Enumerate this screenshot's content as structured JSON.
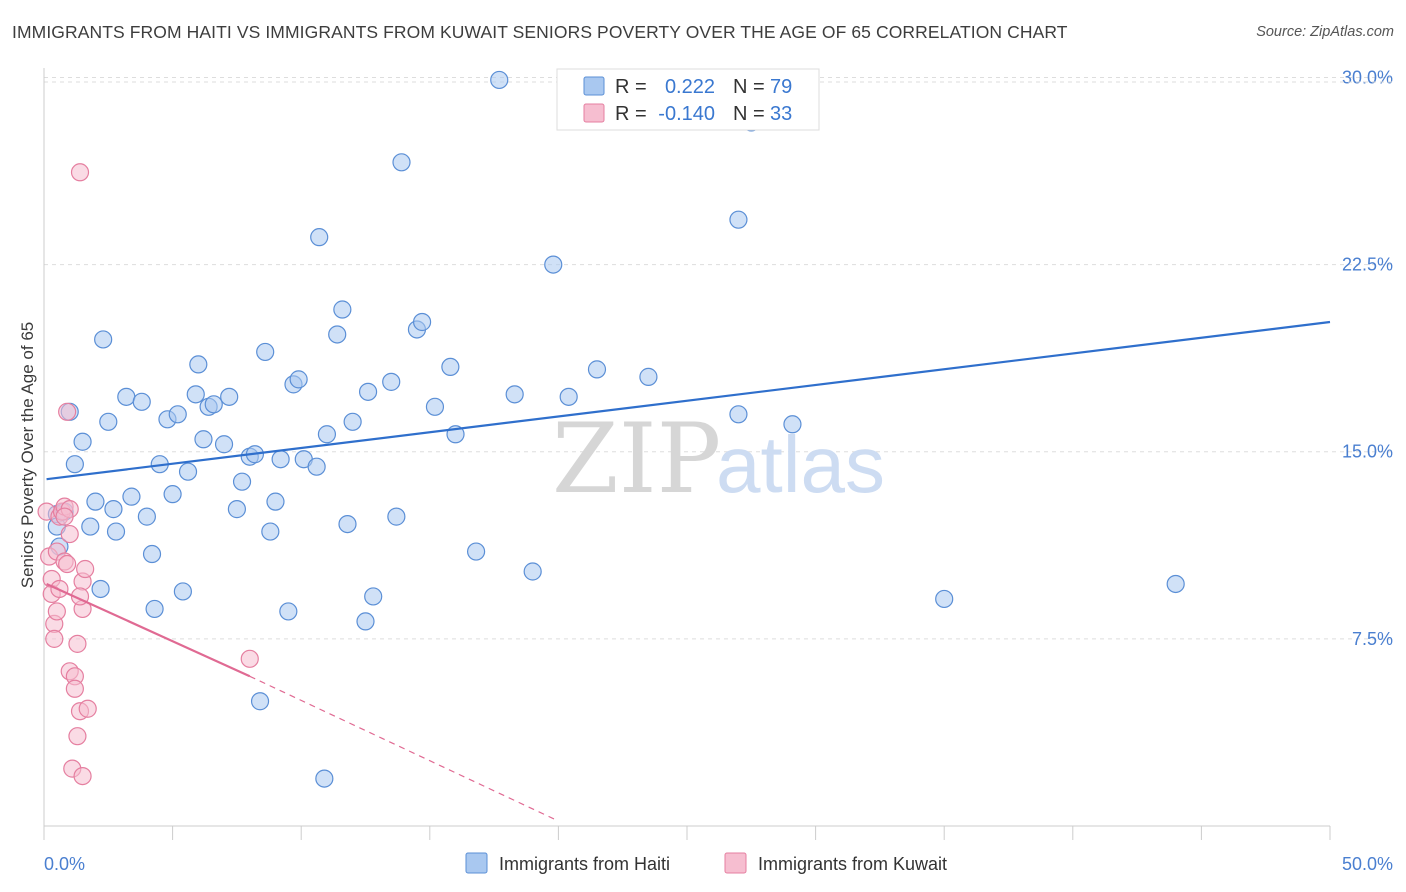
{
  "title": "IMMIGRANTS FROM HAITI VS IMMIGRANTS FROM KUWAIT SENIORS POVERTY OVER THE AGE OF 65 CORRELATION CHART",
  "source": "Source: ZipAtlas.com",
  "watermark": {
    "part1": "ZIP",
    "part2": "atlas"
  },
  "colors": {
    "haiti_fill": "#a9c8f0",
    "haiti_stroke": "#5b8fd6",
    "haiti_line": "#2f6fcc",
    "kuwait_fill": "#f6bed0",
    "kuwait_stroke": "#e57fa0",
    "kuwait_line": "#e06a93",
    "grid": "#dddddd",
    "tick_text": "#4a7fd0"
  },
  "legend_top": [
    {
      "r_label": "R =",
      "r_value": "0.222",
      "n_label": "N =",
      "n_value": "79"
    },
    {
      "r_label": "R =",
      "r_value": "-0.140",
      "n_label": "N =",
      "n_value": "33"
    }
  ],
  "chart_data": {
    "type": "scatter",
    "title": "IMMIGRANTS FROM HAITI VS IMMIGRANTS FROM KUWAIT SENIORS POVERTY OVER THE AGE OF 65 CORRELATION CHART",
    "xlabel": "",
    "ylabel": "Seniors Poverty Over the Age of 65",
    "xlim": [
      0,
      50
    ],
    "ylim": [
      0,
      30.7
    ],
    "x_tick_labels": [
      "0.0%",
      "50.0%"
    ],
    "y_ticks": [
      7.5,
      15.0,
      22.5,
      30.0
    ],
    "y_tick_labels": [
      "7.5%",
      "15.0%",
      "22.5%",
      "30.0%"
    ],
    "series": [
      {
        "name": "Immigrants from Haiti",
        "r": 0.222,
        "n": 79,
        "trend": {
          "x": [
            0.1,
            50.0
          ],
          "y": [
            13.9,
            20.2
          ],
          "dashed_to": null
        },
        "points": [
          [
            0.5,
            12.5
          ],
          [
            0.5,
            12.0
          ],
          [
            0.6,
            11.2
          ],
          [
            0.8,
            12.6
          ],
          [
            1.0,
            16.6
          ],
          [
            1.2,
            14.5
          ],
          [
            1.5,
            15.4
          ],
          [
            1.8,
            12.0
          ],
          [
            2.0,
            13.0
          ],
          [
            2.2,
            9.5
          ],
          [
            2.3,
            19.5
          ],
          [
            2.5,
            16.2
          ],
          [
            2.7,
            12.7
          ],
          [
            2.8,
            11.8
          ],
          [
            3.2,
            17.2
          ],
          [
            3.4,
            13.2
          ],
          [
            3.8,
            17.0
          ],
          [
            4.0,
            12.4
          ],
          [
            4.2,
            10.9
          ],
          [
            4.3,
            8.7
          ],
          [
            4.5,
            14.5
          ],
          [
            4.8,
            16.3
          ],
          [
            5.0,
            13.3
          ],
          [
            5.2,
            16.5
          ],
          [
            5.4,
            9.4
          ],
          [
            5.6,
            14.2
          ],
          [
            5.9,
            17.3
          ],
          [
            6.0,
            18.5
          ],
          [
            6.2,
            15.5
          ],
          [
            6.4,
            16.8
          ],
          [
            6.6,
            16.9
          ],
          [
            7.0,
            15.3
          ],
          [
            7.2,
            17.2
          ],
          [
            7.5,
            12.7
          ],
          [
            7.7,
            13.8
          ],
          [
            8.0,
            14.8
          ],
          [
            8.2,
            14.9
          ],
          [
            8.4,
            5.0
          ],
          [
            8.6,
            19.0
          ],
          [
            8.8,
            11.8
          ],
          [
            9.0,
            13.0
          ],
          [
            9.2,
            14.7
          ],
          [
            9.5,
            8.6
          ],
          [
            9.7,
            17.7
          ],
          [
            9.9,
            17.9
          ],
          [
            10.1,
            14.7
          ],
          [
            10.6,
            14.4
          ],
          [
            10.7,
            23.6
          ],
          [
            11.0,
            15.7
          ],
          [
            11.4,
            19.7
          ],
          [
            11.6,
            20.7
          ],
          [
            11.8,
            12.1
          ],
          [
            12.0,
            16.2
          ],
          [
            12.5,
            8.2
          ],
          [
            12.6,
            17.4
          ],
          [
            12.8,
            9.2
          ],
          [
            13.5,
            17.8
          ],
          [
            13.7,
            12.4
          ],
          [
            13.9,
            26.6
          ],
          [
            14.5,
            19.9
          ],
          [
            14.7,
            20.2
          ],
          [
            15.2,
            16.8
          ],
          [
            15.8,
            18.4
          ],
          [
            16.0,
            15.7
          ],
          [
            16.8,
            11.0
          ],
          [
            18.3,
            17.3
          ],
          [
            19.0,
            10.2
          ],
          [
            19.8,
            22.5
          ],
          [
            20.4,
            17.2
          ],
          [
            21.5,
            18.3
          ],
          [
            23.5,
            18.0
          ],
          [
            27.0,
            24.3
          ],
          [
            27.5,
            28.2
          ],
          [
            27.0,
            16.5
          ],
          [
            29.1,
            16.1
          ],
          [
            10.9,
            1.9
          ],
          [
            17.7,
            29.9
          ],
          [
            35.0,
            9.1
          ],
          [
            44.0,
            9.7
          ]
        ]
      },
      {
        "name": "Immigrants from Kuwait",
        "r": -0.14,
        "n": 33,
        "trend": {
          "x": [
            0.1,
            8.0
          ],
          "y": [
            9.7,
            6.0
          ],
          "dashed_to": [
            20.0,
            0.2
          ]
        },
        "points": [
          [
            0.1,
            12.6
          ],
          [
            0.2,
            10.8
          ],
          [
            0.3,
            9.9
          ],
          [
            0.3,
            9.3
          ],
          [
            0.4,
            8.1
          ],
          [
            0.4,
            7.5
          ],
          [
            0.5,
            8.6
          ],
          [
            0.5,
            11.0
          ],
          [
            0.6,
            12.4
          ],
          [
            0.6,
            9.5
          ],
          [
            0.7,
            12.6
          ],
          [
            0.8,
            12.8
          ],
          [
            0.8,
            10.6
          ],
          [
            0.9,
            10.5
          ],
          [
            0.9,
            16.6
          ],
          [
            1.0,
            11.7
          ],
          [
            1.0,
            12.7
          ],
          [
            1.0,
            6.2
          ],
          [
            1.1,
            2.3
          ],
          [
            1.2,
            6.0
          ],
          [
            1.2,
            5.5
          ],
          [
            1.3,
            7.3
          ],
          [
            1.3,
            3.6
          ],
          [
            1.4,
            4.6
          ],
          [
            1.5,
            8.7
          ],
          [
            1.5,
            9.8
          ],
          [
            1.6,
            10.3
          ],
          [
            1.4,
            9.2
          ],
          [
            1.4,
            26.2
          ],
          [
            1.5,
            2.0
          ],
          [
            1.7,
            4.7
          ],
          [
            8.0,
            6.7
          ],
          [
            0.8,
            12.4
          ]
        ]
      }
    ],
    "legend": [
      "Immigrants from Haiti",
      "Immigrants from Kuwait"
    ],
    "legend_position": "bottom-center",
    "grid": true
  }
}
